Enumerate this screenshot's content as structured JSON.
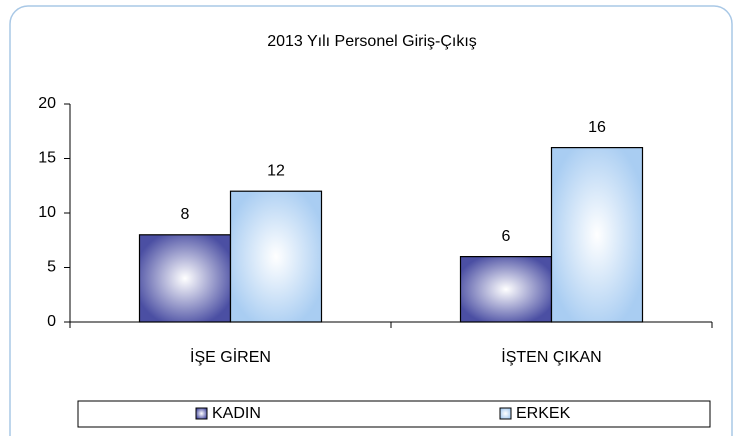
{
  "chart_data": {
    "type": "bar",
    "title": "2013 Yılı Personel Giriş-Çıkış",
    "categories": [
      "İŞE GİREN",
      "İŞTEN ÇIKAN"
    ],
    "series": [
      {
        "name": "KADIN",
        "color": "#4b4fa3",
        "values": [
          8,
          6
        ]
      },
      {
        "name": "ERKEK",
        "color": "#a9cdf2",
        "values": [
          12,
          16
        ]
      }
    ],
    "ylim": [
      0,
      20
    ],
    "yticks": [
      0,
      5,
      10,
      15,
      20
    ],
    "legend": "bottom"
  }
}
